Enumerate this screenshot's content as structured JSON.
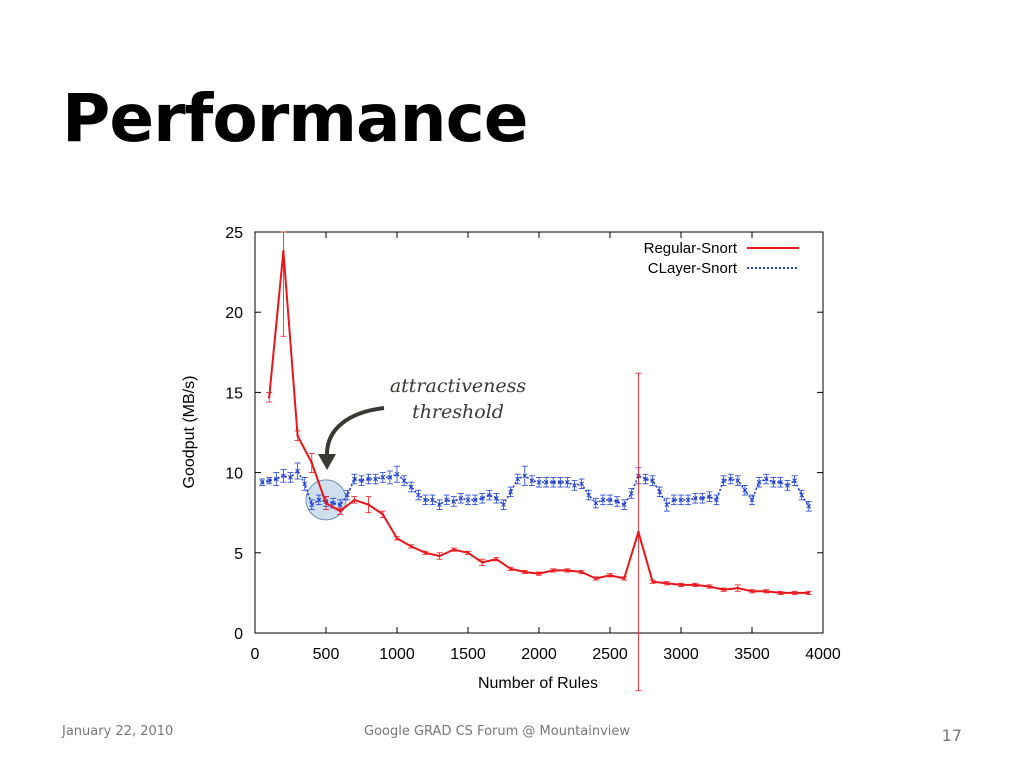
{
  "slide": {
    "title": "Performance",
    "footer_date": "January 22, 2010",
    "footer_center": "Google GRAD CS Forum @ Mountainview",
    "page_number": "17"
  },
  "annotation": {
    "line1": "attractiveness",
    "line2": "threshold",
    "arrow_color": "#3a3a34",
    "highlight_color": "#a8c4e0"
  },
  "chart_data": {
    "type": "line",
    "xlabel": "Number of Rules",
    "ylabel": "Goodput (MB/s)",
    "xlim": [
      0,
      4000
    ],
    "ylim": [
      0,
      25
    ],
    "xticks": [
      0,
      500,
      1000,
      1500,
      2000,
      2500,
      3000,
      3500,
      4000
    ],
    "yticks": [
      0,
      5,
      10,
      15,
      20,
      25
    ],
    "grid": false,
    "legend_position": "top-right",
    "series": [
      {
        "name": "Regular-Snort",
        "color": "#e8161b",
        "style": "solid",
        "x": [
          100,
          200,
          300,
          400,
          500,
          600,
          700,
          800,
          900,
          1000,
          1100,
          1200,
          1300,
          1400,
          1500,
          1600,
          1700,
          1800,
          1900,
          2000,
          2100,
          2200,
          2300,
          2400,
          2500,
          2600,
          2700,
          2800,
          2900,
          3000,
          3100,
          3200,
          3300,
          3400,
          3500,
          3600,
          3700,
          3800,
          3900
        ],
        "y": [
          14.7,
          23.8,
          12.3,
          10.6,
          8.1,
          7.6,
          8.3,
          8.0,
          7.4,
          5.9,
          5.4,
          5.0,
          4.8,
          5.2,
          5.0,
          4.4,
          4.6,
          4.0,
          3.8,
          3.7,
          3.9,
          3.9,
          3.8,
          3.4,
          3.6,
          3.4,
          6.3,
          3.2,
          3.1,
          3.0,
          3.0,
          2.9,
          2.7,
          2.8,
          2.6,
          2.6,
          2.5,
          2.5,
          2.5
        ],
        "err": [
          0.3,
          5.3,
          0.3,
          0.6,
          0.4,
          0.2,
          0.2,
          0.5,
          0.2,
          0.1,
          0.1,
          0.1,
          0.2,
          0.1,
          0.1,
          0.2,
          0.1,
          0.1,
          0.1,
          0.1,
          0.1,
          0.1,
          0.1,
          0.1,
          0.1,
          0.1,
          9.9,
          0.1,
          0.1,
          0.1,
          0.1,
          0.1,
          0.1,
          0.2,
          0.1,
          0.1,
          0.1,
          0.1,
          0.1
        ]
      },
      {
        "name": "CLayer-Snort",
        "color": "#1e3fd4",
        "style": "dotted",
        "x": [
          50,
          100,
          150,
          200,
          250,
          300,
          350,
          400,
          450,
          500,
          550,
          600,
          650,
          700,
          750,
          800,
          850,
          900,
          950,
          1000,
          1050,
          1100,
          1150,
          1200,
          1250,
          1300,
          1350,
          1400,
          1450,
          1500,
          1550,
          1600,
          1650,
          1700,
          1750,
          1800,
          1850,
          1900,
          1950,
          2000,
          2050,
          2100,
          2150,
          2200,
          2250,
          2300,
          2350,
          2400,
          2450,
          2500,
          2550,
          2600,
          2650,
          2700,
          2750,
          2800,
          2850,
          2900,
          2950,
          3000,
          3050,
          3100,
          3150,
          3200,
          3250,
          3300,
          3350,
          3400,
          3450,
          3500,
          3550,
          3600,
          3650,
          3700,
          3750,
          3800,
          3850,
          3900
        ],
        "y": [
          9.4,
          9.5,
          9.6,
          9.8,
          9.7,
          10.1,
          9.3,
          8.0,
          8.3,
          8.2,
          8.1,
          8.0,
          8.6,
          9.6,
          9.5,
          9.6,
          9.6,
          9.7,
          9.7,
          9.9,
          9.5,
          9.1,
          8.6,
          8.3,
          8.3,
          8.0,
          8.3,
          8.2,
          8.4,
          8.3,
          8.3,
          8.4,
          8.6,
          8.4,
          8.0,
          8.8,
          9.6,
          9.8,
          9.5,
          9.4,
          9.4,
          9.4,
          9.4,
          9.4,
          9.2,
          9.3,
          8.6,
          8.1,
          8.3,
          8.3,
          8.2,
          8.0,
          8.7,
          9.8,
          9.6,
          9.5,
          8.8,
          8.0,
          8.3,
          8.3,
          8.3,
          8.4,
          8.4,
          8.5,
          8.3,
          9.5,
          9.6,
          9.5,
          8.9,
          8.3,
          9.4,
          9.6,
          9.4,
          9.4,
          9.2,
          9.5,
          8.6,
          7.9
        ],
        "err": [
          0.2,
          0.2,
          0.4,
          0.4,
          0.3,
          0.5,
          0.4,
          0.3,
          0.3,
          0.3,
          0.3,
          0.3,
          0.3,
          0.3,
          0.3,
          0.3,
          0.3,
          0.3,
          0.4,
          0.5,
          0.3,
          0.3,
          0.3,
          0.3,
          0.3,
          0.3,
          0.3,
          0.3,
          0.3,
          0.3,
          0.3,
          0.3,
          0.3,
          0.3,
          0.3,
          0.3,
          0.3,
          0.6,
          0.3,
          0.3,
          0.3,
          0.3,
          0.3,
          0.3,
          0.3,
          0.3,
          0.3,
          0.3,
          0.3,
          0.3,
          0.3,
          0.3,
          0.3,
          0.5,
          0.3,
          0.3,
          0.3,
          0.4,
          0.3,
          0.3,
          0.3,
          0.3,
          0.3,
          0.3,
          0.3,
          0.3,
          0.3,
          0.3,
          0.3,
          0.3,
          0.3,
          0.3,
          0.3,
          0.3,
          0.3,
          0.3,
          0.3,
          0.3
        ]
      }
    ]
  }
}
